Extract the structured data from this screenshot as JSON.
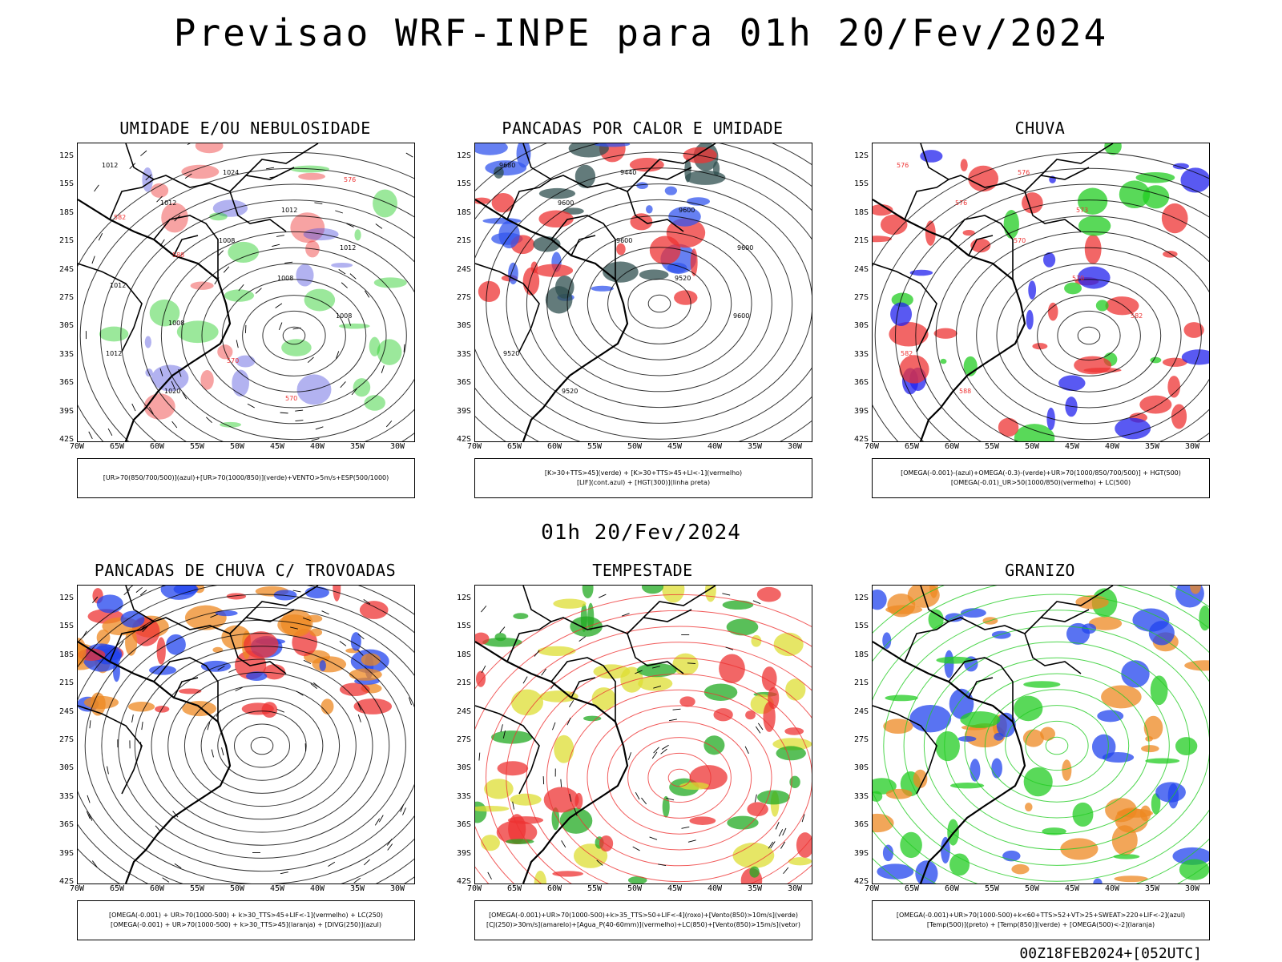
{
  "title": "Previsao WRF-INPE  para 01h 20/Fev/2024",
  "mid_title": "01h 20/Fev/2024",
  "footer": "00Z18FEB2024+[052UTC]",
  "lat_ticks": [
    "12S",
    "15S",
    "18S",
    "21S",
    "24S",
    "27S",
    "30S",
    "33S",
    "36S",
    "39S",
    "42S"
  ],
  "lon_ticks": [
    "70W",
    "65W",
    "60W",
    "55W",
    "50W",
    "45W",
    "40W",
    "35W",
    "30W"
  ],
  "panels": [
    {
      "title": "UMIDADE E/OU NEBULOSIDADE",
      "legend": [
        "[UR>70(850/700/500)](azul)+[UR>70(1000/850)](verde)+VENTO>5m/s+ESP(500/1000)"
      ],
      "colors": [
        "#5555dd",
        "#22cc22",
        "#ee3333"
      ],
      "labels": [
        "1012",
        "1012",
        "1008",
        "1008",
        "1008",
        "1012",
        "1020",
        "1024",
        "1012",
        "1012",
        "1012",
        "1008",
        "570",
        "570",
        "576",
        "582",
        "588"
      ]
    },
    {
      "title": "PANCADAS POR CALOR E UMIDADE",
      "legend": [
        "[K>30+TTS>45](verde)  +  [K>30+TTS>45+LI<-1](vermelho)",
        "[LIF](cont.azul)  +  [HGT(300)](linha preta)"
      ],
      "colors": [
        "#2f4f4f",
        "#ee3333",
        "#3355ee"
      ],
      "labels": [
        "9680",
        "9600",
        "9600",
        "9520",
        "9600",
        "9520",
        "9520",
        "9440",
        "9600",
        "9600"
      ]
    },
    {
      "title": "CHUVA",
      "legend": [
        "[OMEGA(-0.001)-(azul)+OMEGA(-0.3)-(verde)+UR>70(1000/850/700/500)]  +  HGT(500)",
        "[OMEGA(-0.01)_UR>50(1000/850)(vermelho)  +  LC(500)"
      ],
      "colors": [
        "#2222ee",
        "#22cc22",
        "#ee3333"
      ],
      "labels": [
        "576",
        "576",
        "570",
        "570",
        "582",
        "582",
        "588",
        "576",
        "573"
      ]
    },
    {
      "title": "PANCADAS DE CHUVA C/ TROVOADAS",
      "legend": [
        "[OMEGA(-0.001)  +  UR>70(1000-500)  +  k>30_TTS>45+LIF<-1](vermelho)  +  LC(250)",
        "[OMEGA(-0.001)  +  UR>70(1000-500)  +  k>30_TTS>45](laranja)  +  [DIVG(250)](azul)"
      ],
      "colors": [
        "#ee3333",
        "#ee8822",
        "#2244ee"
      ],
      "labels": []
    },
    {
      "title": "TEMPESTADE",
      "legend": [
        "[OMEGA(-0.001)+UR>70(1000-500)+k>35_TTS>50+LIF<-4](roxo)+[Vento(850)>10m/s](verde)",
        "[CJ(250)>30m/s](amarelo)+[Agua_P(40-60mm)](vermelho)+LC(850)+[Vento(850)>15m/s](vetor)"
      ],
      "colors": [
        "#ee3333",
        "#dddd33",
        "#22aa22"
      ],
      "labels": []
    },
    {
      "title": "GRANIZO",
      "legend": [
        "[OMEGA(-0.001)+UR>70(1000-500)+k<60+TTS>52+VT>25+SWEAT>220+LIF<-2](azul)",
        "[Temp(500)](preto)  +  [Temp(850)](verde)  +  [OMEGA(500)<-2](laranja)"
      ],
      "colors": [
        "#22cc22",
        "#2244ee",
        "#ee8822"
      ],
      "labels": []
    }
  ]
}
